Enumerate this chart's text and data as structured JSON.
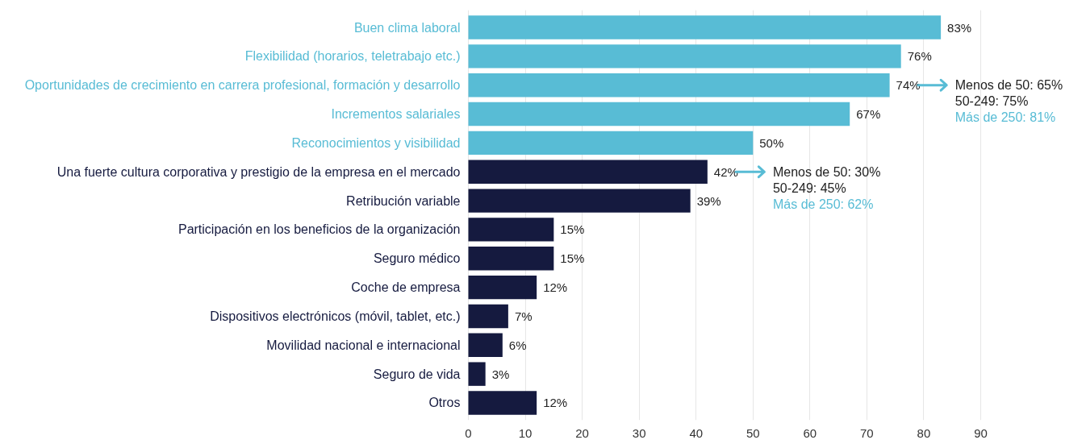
{
  "chart_data": {
    "type": "bar",
    "orientation": "horizontal",
    "categories": [
      "Buen clima laboral",
      "Flexibilidad (horarios, teletrabajo etc.)",
      "Oportunidades de crecimiento en carrera profesional, formación y desarrollo",
      "Incrementos salariales",
      "Reconocimientos y visibilidad",
      "Una fuerte cultura corporativa y prestigio de la empresa en el mercado",
      "Retribución variable",
      "Participación en los beneficios de la organización",
      "Seguro médico",
      "Coche de empresa",
      "Dispositivos electrónicos (móvil, tablet, etc.)",
      "Movilidad nacional e internacional",
      "Seguro de vida",
      "Otros"
    ],
    "values": [
      83,
      76,
      74,
      67,
      50,
      42,
      39,
      15,
      15,
      12,
      7,
      6,
      3,
      12
    ],
    "colors": [
      "#58bcd5",
      "#58bcd5",
      "#58bcd5",
      "#58bcd5",
      "#58bcd5",
      "#151a3f",
      "#151a3f",
      "#151a3f",
      "#151a3f",
      "#151a3f",
      "#151a3f",
      "#151a3f",
      "#151a3f",
      "#151a3f"
    ],
    "value_labels": [
      "83%",
      "76%",
      "74%",
      "67%",
      "50%",
      "42%",
      "39%",
      "15%",
      "15%",
      "12%",
      "7%",
      "6%",
      "3%",
      "12%"
    ],
    "xlim": [
      0,
      90
    ],
    "xticks": [
      0,
      10,
      20,
      30,
      40,
      50,
      60,
      70,
      80,
      90
    ],
    "grid": "x",
    "annotations": [
      "Menos de 50: 65%\n50-249: 75%\nMás de 250: 81%",
      "Menos de 50: 30%\n50-249: 45%\nMás de 250: 62%"
    ]
  }
}
